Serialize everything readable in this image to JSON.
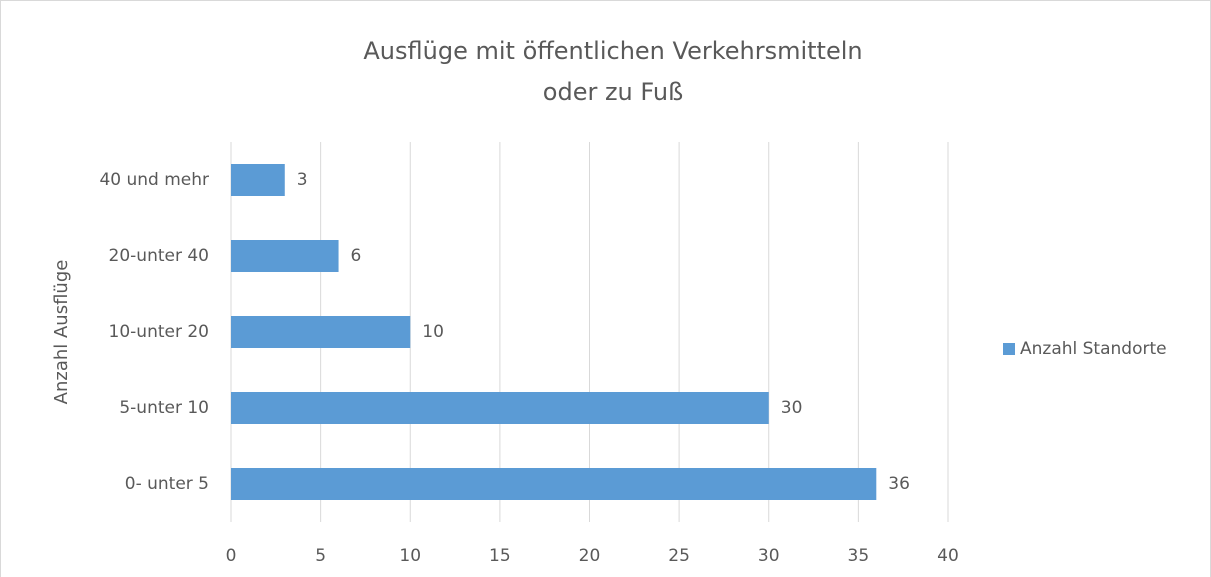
{
  "chart_data": {
    "type": "bar",
    "orientation": "horizontal",
    "title": [
      "Ausflüge mit öffentlichen Verkehrsmitteln",
      "oder zu Fuß"
    ],
    "y_label": "Anzahl Ausflüge",
    "categories": [
      "0- unter 5",
      "5-unter 10",
      "10-unter 20",
      "20-unter 40",
      "40 und mehr"
    ],
    "series": [
      {
        "name": "Anzahl Standorte",
        "color": "#5b9bd5",
        "values": [
          36,
          30,
          10,
          6,
          3
        ]
      }
    ],
    "xlim": [
      0,
      40
    ],
    "xticks": [
      0,
      5,
      10,
      15,
      20,
      25,
      30,
      35,
      40
    ],
    "grid": true,
    "legend": "right"
  }
}
